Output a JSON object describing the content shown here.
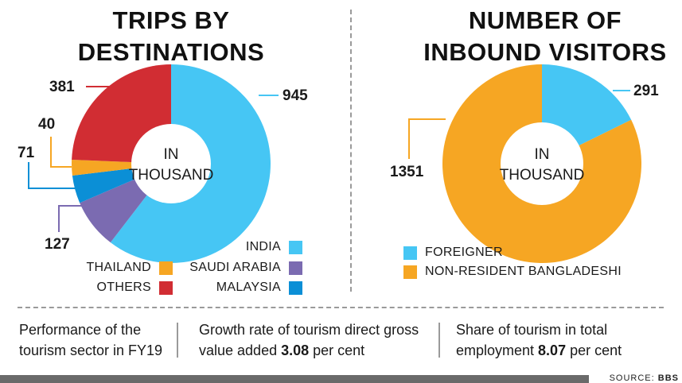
{
  "titles": {
    "left": [
      "TRIPS BY",
      "DESTINATIONS"
    ],
    "right": [
      "NUMBER OF",
      "INBOUND VISITORS"
    ]
  },
  "chart_data": [
    {
      "type": "pie",
      "title": "TRIPS BY DESTINATIONS",
      "center_label": [
        "IN",
        "THOUSAND"
      ],
      "slices": [
        {
          "name": "INDIA",
          "value": 945,
          "color": "#46c6f4"
        },
        {
          "name": "SAUDI ARABIA",
          "value": 127,
          "color": "#7b6bb1"
        },
        {
          "name": "MALAYSIA",
          "value": 71,
          "color": "#0b8fd6"
        },
        {
          "name": "THAILAND",
          "value": 40,
          "color": "#f6a623"
        },
        {
          "name": "OTHERS",
          "value": 381,
          "color": "#d12d33"
        }
      ],
      "legend": [
        "INDIA",
        "THAILAND",
        "SAUDI ARABIA",
        "OTHERS",
        "MALAYSIA"
      ]
    },
    {
      "type": "pie",
      "title": "NUMBER OF INBOUND VISITORS",
      "center_label": [
        "IN",
        "THOUSAND"
      ],
      "slices": [
        {
          "name": "FOREIGNER",
          "value": 291,
          "color": "#46c6f4"
        },
        {
          "name": "NON-RESIDENT BANGLADESHI",
          "value": 1351,
          "color": "#f6a623"
        }
      ],
      "legend": [
        "FOREIGNER",
        "NON-RESIDENT BANGLADESHI"
      ]
    }
  ],
  "stats": {
    "s1": {
      "line1": "Performance of the",
      "line2": "tourism sector in FY19"
    },
    "s2": {
      "line1": "Growth rate of tourism direct gross",
      "line2_pre": "value added ",
      "line2_bold": "3.08",
      "line2_post": " per cent"
    },
    "s3": {
      "line1": "Share of tourism in total",
      "line2_pre": "employment ",
      "line2_bold": "8.07",
      "line2_post": " per cent"
    }
  },
  "source": {
    "prefix": "SOURCE: ",
    "name": "BBS"
  }
}
